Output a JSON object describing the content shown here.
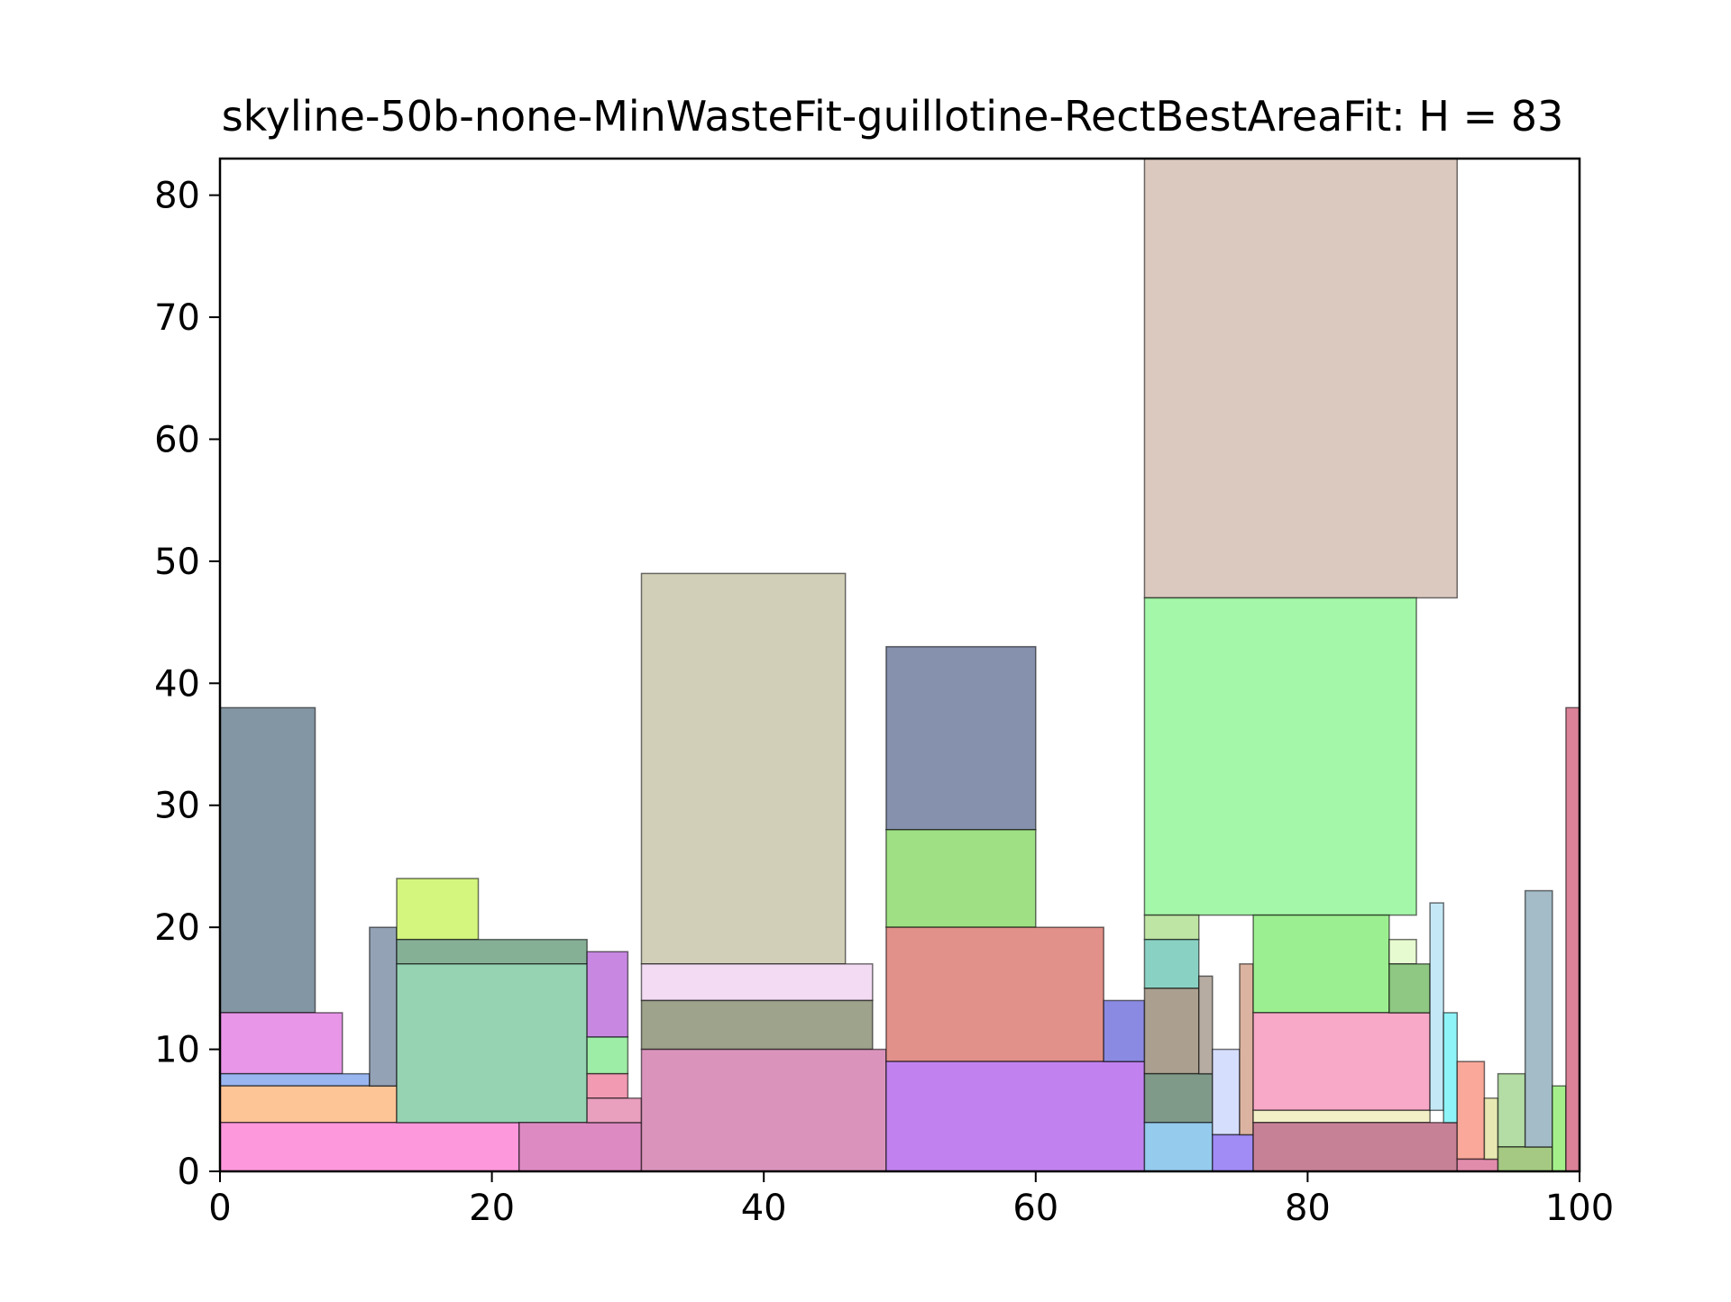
{
  "chart_data": {
    "type": "rectangle-packing",
    "title": "skyline-50b-none-MinWasteFit-guillotine-RectBestAreaFit: H = 83",
    "xlabel": "",
    "ylabel": "",
    "xlim": [
      0,
      100
    ],
    "ylim": [
      0,
      83
    ],
    "xticks": [
      0,
      20,
      40,
      60,
      80,
      100
    ],
    "yticks": [
      0,
      10,
      20,
      30,
      40,
      50,
      60,
      70,
      80
    ],
    "grid": false,
    "legend": "none",
    "rects": [
      {
        "x": 0,
        "y": 13,
        "w": 7,
        "h": 25,
        "color": "#8396a3"
      },
      {
        "x": 0,
        "y": 8,
        "w": 9,
        "h": 5,
        "color": "#e796e8"
      },
      {
        "x": 0,
        "y": 7,
        "w": 11,
        "h": 1,
        "color": "#9ab6f0"
      },
      {
        "x": 0,
        "y": 4,
        "w": 13,
        "h": 3,
        "color": "#fdc496"
      },
      {
        "x": 0,
        "y": 0,
        "w": 22,
        "h": 4,
        "color": "#fd98dc"
      },
      {
        "x": 11,
        "y": 7,
        "w": 2,
        "h": 13,
        "color": "#94a2b6"
      },
      {
        "x": 13,
        "y": 19,
        "w": 6,
        "h": 5,
        "color": "#d4f67e"
      },
      {
        "x": 13,
        "y": 17,
        "w": 14,
        "h": 2,
        "color": "#86b096"
      },
      {
        "x": 13,
        "y": 4,
        "w": 14,
        "h": 13,
        "color": "#95d3b3"
      },
      {
        "x": 22,
        "y": 0,
        "w": 9,
        "h": 4,
        "color": "#de8ac2"
      },
      {
        "x": 27,
        "y": 11,
        "w": 3,
        "h": 7,
        "color": "#c888e2"
      },
      {
        "x": 27,
        "y": 8,
        "w": 3,
        "h": 3,
        "color": "#9eeda6"
      },
      {
        "x": 27,
        "y": 6,
        "w": 3,
        "h": 2,
        "color": "#f19ab2"
      },
      {
        "x": 27,
        "y": 4,
        "w": 4,
        "h": 2,
        "color": "#e99fbe"
      },
      {
        "x": 31,
        "y": 17,
        "w": 15,
        "h": 32,
        "color": "#d2cfb8"
      },
      {
        "x": 31,
        "y": 14,
        "w": 17,
        "h": 3,
        "color": "#f3dbf4"
      },
      {
        "x": 31,
        "y": 10,
        "w": 17,
        "h": 4,
        "color": "#9ea38c"
      },
      {
        "x": 31,
        "y": 0,
        "w": 18,
        "h": 10,
        "color": "#da94bc"
      },
      {
        "x": 49,
        "y": 28,
        "w": 11,
        "h": 15,
        "color": "#8591ad"
      },
      {
        "x": 49,
        "y": 20,
        "w": 11,
        "h": 8,
        "color": "#9ee083"
      },
      {
        "x": 49,
        "y": 9,
        "w": 16,
        "h": 11,
        "color": "#e19189"
      },
      {
        "x": 49,
        "y": 0,
        "w": 19,
        "h": 9,
        "color": "#c182ef"
      },
      {
        "x": 65,
        "y": 9,
        "w": 3,
        "h": 5,
        "color": "#8a8ae2"
      },
      {
        "x": 68,
        "y": 47,
        "w": 23,
        "h": 36,
        "color": "#dbc8bf"
      },
      {
        "x": 68,
        "y": 21,
        "w": 20,
        "h": 26,
        "color": "#a4f7a8"
      },
      {
        "x": 68,
        "y": 19,
        "w": 4,
        "h": 2,
        "color": "#bee5a4"
      },
      {
        "x": 68,
        "y": 15,
        "w": 4,
        "h": 4,
        "color": "#89d1c3"
      },
      {
        "x": 68,
        "y": 8,
        "w": 4,
        "h": 7,
        "color": "#aba08f"
      },
      {
        "x": 68,
        "y": 4,
        "w": 5,
        "h": 4,
        "color": "#809a8a"
      },
      {
        "x": 68,
        "y": 0,
        "w": 5,
        "h": 4,
        "color": "#95cbec"
      },
      {
        "x": 72,
        "y": 8,
        "w": 1,
        "h": 8,
        "color": "#b6aca2"
      },
      {
        "x": 73,
        "y": 3,
        "w": 2,
        "h": 7,
        "color": "#d6defd"
      },
      {
        "x": 73,
        "y": 0,
        "w": 3,
        "h": 3,
        "color": "#a18cf6"
      },
      {
        "x": 75,
        "y": 3,
        "w": 1,
        "h": 14,
        "color": "#dbb3a0"
      },
      {
        "x": 76,
        "y": 13,
        "w": 10,
        "h": 8,
        "color": "#9cef90"
      },
      {
        "x": 76,
        "y": 5,
        "w": 13,
        "h": 8,
        "color": "#f7a9c7"
      },
      {
        "x": 76,
        "y": 4,
        "w": 13,
        "h": 1,
        "color": "#f2f0c7"
      },
      {
        "x": 76,
        "y": 0,
        "w": 15,
        "h": 4,
        "color": "#c78197"
      },
      {
        "x": 86,
        "y": 17,
        "w": 2,
        "h": 2,
        "color": "#e7fbd1"
      },
      {
        "x": 86,
        "y": 13,
        "w": 3,
        "h": 4,
        "color": "#8ec882"
      },
      {
        "x": 89,
        "y": 5,
        "w": 1,
        "h": 17,
        "color": "#c5e8f6"
      },
      {
        "x": 90,
        "y": 4,
        "w": 1,
        "h": 9,
        "color": "#8ff4f7"
      },
      {
        "x": 91,
        "y": 1,
        "w": 2,
        "h": 8,
        "color": "#f9a89a"
      },
      {
        "x": 91,
        "y": 0,
        "w": 3,
        "h": 1,
        "color": "#e28cac"
      },
      {
        "x": 93,
        "y": 1,
        "w": 1,
        "h": 5,
        "color": "#e8e9b2"
      },
      {
        "x": 94,
        "y": 2,
        "w": 2,
        "h": 6,
        "color": "#b3dda4"
      },
      {
        "x": 94,
        "y": 0,
        "w": 4,
        "h": 2,
        "color": "#a5c982"
      },
      {
        "x": 96,
        "y": 2,
        "w": 2,
        "h": 21,
        "color": "#a3bcc7"
      },
      {
        "x": 98,
        "y": 0,
        "w": 1,
        "h": 7,
        "color": "#a4ef8a"
      },
      {
        "x": 99,
        "y": 0,
        "w": 1,
        "h": 38,
        "color": "#db8298"
      }
    ]
  }
}
